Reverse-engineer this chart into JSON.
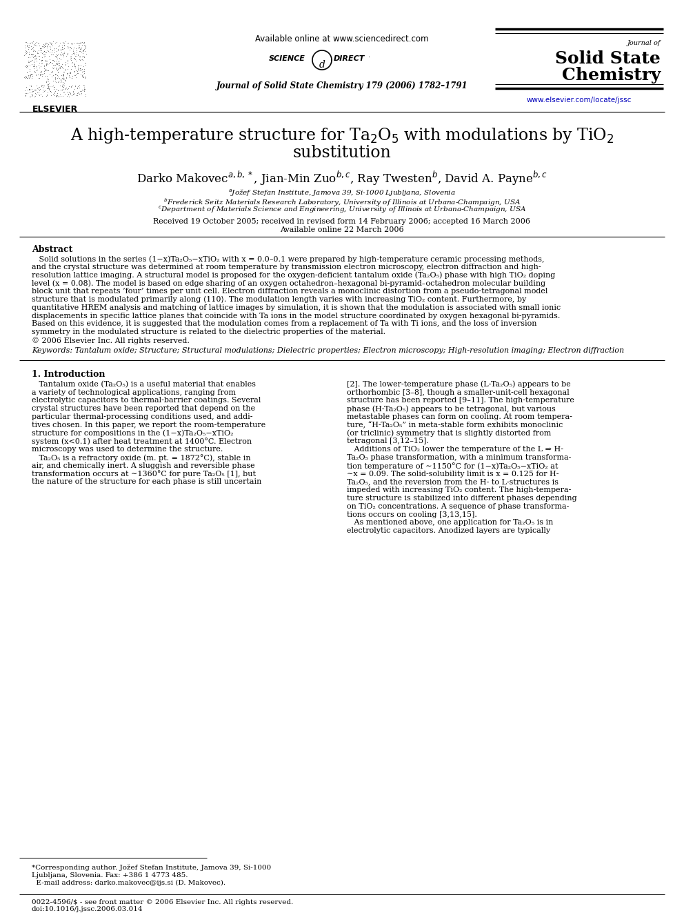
{
  "background_color": "#ffffff",
  "available_online": "Available online at www.sciencedirect.com",
  "journal_info": "Journal of Solid State Chemistry 179 (2006) 1782–1791",
  "journal_name_line1": "Journal of",
  "journal_name_line2": "Solid State",
  "journal_name_line3": "Chemistry",
  "website": "www.elsevier.com/locate/jssc",
  "title_line1": "A high-temperature structure for Ta$_2$O$_5$ with modulations by TiO$_2$",
  "title_line2": "substitution",
  "authors": "Darko Makovec$^{a,b,*}$, Jian-Min Zuo$^{b,c}$, Ray Twesten$^{b}$, David A. Payne$^{b,c}$",
  "aff1": "$^a$Jožef Stefan Institute, Jamova 39, Si-1000 Ljubljana, Slovenia",
  "aff2": "$^b$Frederick Seitz Materials Research Laboratory, University of Illinois at Urbana-Champaign, USA",
  "aff3": "$^c$Department of Materials Science and Engineering, University of Illinois at Urbana-Champaign, USA",
  "received1": "Received 19 October 2005; received in revised form 14 February 2006; accepted 16 March 2006",
  "received2": "Available online 22 March 2006",
  "abstract_heading": "Abstract",
  "abs_lines": [
    "   Solid solutions in the series (1−x)Ta₂O₅−xTiO₂ with x = 0.0–0.1 were prepared by high-temperature ceramic processing methods,",
    "and the crystal structure was determined at room temperature by transmission electron microscopy, electron diffraction and high-",
    "resolution lattice imaging. A structural model is proposed for the oxygen-deficient tantalum oxide (Ta₂O₅) phase with high TiO₂ doping",
    "level (x = 0.08). The model is based on edge sharing of an oxygen octahedron–hexagonal bi-pyramid–octahedron molecular building",
    "block unit that repeats ’four’ times per unit cell. Electron diffraction reveals a monoclinic distortion from a pseudo-tetragonal model",
    "structure that is modulated primarily along ⟨110⟩. The modulation length varies with increasing TiO₂ content. Furthermore, by",
    "quantitative HREM analysis and matching of lattice images by simulation, it is shown that the modulation is associated with small ionic",
    "displacements in specific lattice planes that coincide with Ta ions in the model structure coordinated by oxygen hexagonal bi-pyramids.",
    "Based on this evidence, it is suggested that the modulation comes from a replacement of Ta with Ti ions, and the loss of inversion",
    "symmetry in the modulated structure is related to the dielectric properties of the material.",
    "© 2006 Elsevier Inc. All rights reserved."
  ],
  "keywords": "Keywords: Tantalum oxide; Structure; Structural modulations; Dielectric properties; Electron microscopy; High-resolution imaging; Electron diffraction",
  "intro_heading": "1. Introduction",
  "col1_lines": [
    "   Tantalum oxide (Ta₂O₅) is a useful material that enables",
    "a variety of technological applications, ranging from",
    "electrolytic capacitors to thermal-barrier coatings. Several",
    "crystal structures have been reported that depend on the",
    "particular thermal-processing conditions used, and addi-",
    "tives chosen. In this paper, we report the room-temperature",
    "structure for compositions in the (1−x)Ta₂O₅−xTiO₂",
    "system (x<0.1) after heat treatment at 1400°C. Electron",
    "microscopy was used to determine the structure.",
    "   Ta₂O₅ is a refractory oxide (m. pt. = 1872°C), stable in",
    "air, and chemically inert. A sluggish and reversible phase",
    "transformation occurs at ∼1360°C for pure Ta₂O₅ [1], but",
    "the nature of the structure for each phase is still uncertain"
  ],
  "col2_lines": [
    "[2]. The lower-temperature phase (L-Ta₂O₅) appears to be",
    "orthorhombic [3–8], though a smaller-unit-cell hexagonal",
    "structure has been reported [9–11]. The high-temperature",
    "phase (H-Ta₂O₅) appears to be tetragonal, but various",
    "metastable phases can form on cooling. At room tempera-",
    "ture, “H-Ta₂O₅” in meta-stable form exhibits monoclinic",
    "(or triclinic) symmetry that is slightly distorted from",
    "tetragonal [3,12–15].",
    "   Additions of TiO₂ lower the temperature of the L ⇒ H-",
    "Ta₂O₅ phase transformation, with a minimum transforma-",
    "tion temperature of ∼1150°C for (1−x)Ta₂O₅−xTiO₂ at",
    "∼x = 0.09. The solid-solubility limit is x = 0.125 for H-",
    "Ta₂O₅, and the reversion from the H- to L-structures is",
    "impeded with increasing TiO₂ content. The high-tempera-",
    "ture structure is stabilized into different phases depending",
    "on TiO₂ concentrations. A sequence of phase transforma-",
    "tions occurs on cooling [3,13,15].",
    "   As mentioned above, one application for Ta₂O₅ is in",
    "electrolytic capacitors. Anodized layers are typically"
  ],
  "footnote_line": "___",
  "footnote1": "*Corresponding author. Jožef Stefan Institute, Jamova 39, Si-1000",
  "footnote2": "Ljubljana, Slovenia. Fax: +386 1 4773 485.",
  "footnote3": "  E-mail address: darko.makovec@ijs.si (D. Makovec).",
  "footer1": "0022-4596/$ - see front matter © 2006 Elsevier Inc. All rights reserved.",
  "footer2": "doi:10.1016/j.jssc.2006.03.014"
}
